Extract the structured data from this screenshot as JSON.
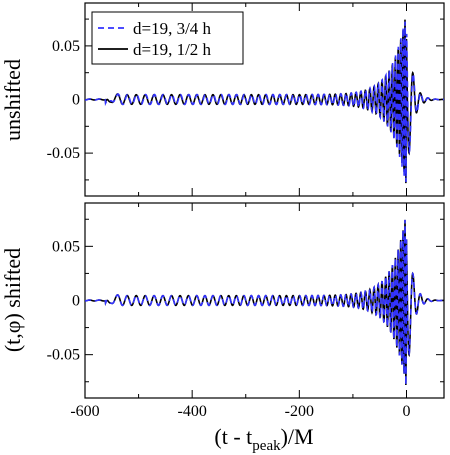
{
  "chart_data": [
    {
      "type": "line",
      "panel": "top",
      "ylabel": "unshifted",
      "xlim": [
        -600,
        70
      ],
      "ylim": [
        -0.09,
        0.09
      ],
      "yticks": [
        -0.05,
        0,
        0.05
      ],
      "ytick_labels": [
        "-0.05",
        "0",
        "0.05"
      ],
      "legend": "top-left",
      "series": [
        {
          "name": "d=19, 3/4 h",
          "color": "#3333ff",
          "style": "dashed"
        },
        {
          "name": "d=19, 1/2 h",
          "color": "#000000",
          "style": "solid"
        }
      ]
    },
    {
      "type": "line",
      "panel": "bottom",
      "ylabel": "(t,φ) shifted",
      "xlabel": "(t - t",
      "xlabel_sub": "peak",
      "xlabel_suffix": ")/M",
      "xlim": [
        -600,
        70
      ],
      "ylim": [
        -0.09,
        0.09
      ],
      "xticks": [
        -600,
        -400,
        -200,
        0
      ],
      "xtick_labels": [
        "-600",
        "-400",
        "-200",
        "0"
      ],
      "yticks": [
        -0.05,
        0,
        0.05
      ],
      "ytick_labels": [
        "-0.05",
        "0",
        "0.05"
      ],
      "series": [
        {
          "name": "d=19, 3/4 h",
          "color": "#3333ff",
          "style": "dashed"
        },
        {
          "name": "d=19, 1/2 h",
          "color": "#000000",
          "style": "solid"
        }
      ]
    }
  ]
}
